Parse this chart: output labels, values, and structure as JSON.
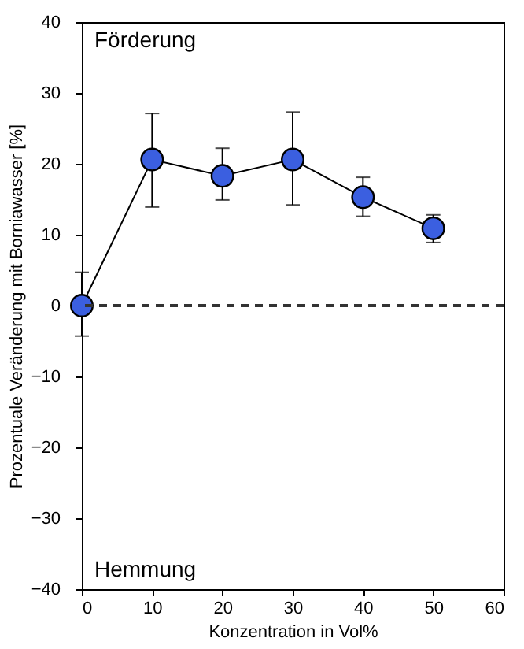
{
  "chart_data": {
    "type": "line",
    "xlabel": "Konzentration in Vol%",
    "ylabel": "Prozentuale Veränderung mit Borniawasser [%]",
    "annotations": [
      "Förderung",
      "Hemmung"
    ],
    "x": [
      0,
      10,
      20,
      30,
      40,
      50
    ],
    "series": [
      {
        "color": "#3b5fe0",
        "values": [
          0,
          20.6,
          18.3,
          20.6,
          15.3,
          10.9
        ],
        "errors": [
          [
            -4.3,
            4.7
          ],
          [
            13.9,
            27.1
          ],
          [
            14.9,
            22.2
          ],
          [
            14.2,
            27.3
          ],
          [
            12.6,
            18.1
          ],
          [
            8.9,
            12.8
          ]
        ]
      }
    ],
    "xlim": [
      0,
      60
    ],
    "xticks": [
      0,
      10,
      20,
      30,
      40,
      50,
      60
    ],
    "ylim": [
      -40,
      40
    ],
    "yticks": [
      -40,
      -30,
      -20,
      -10,
      0,
      10,
      20,
      30,
      40
    ],
    "ref_lines": [
      {
        "axis": "y",
        "value": 0,
        "color": "#333333",
        "line_style": "dashed"
      }
    ],
    "marker": "circle",
    "line_style": "solid",
    "grid": false
  }
}
